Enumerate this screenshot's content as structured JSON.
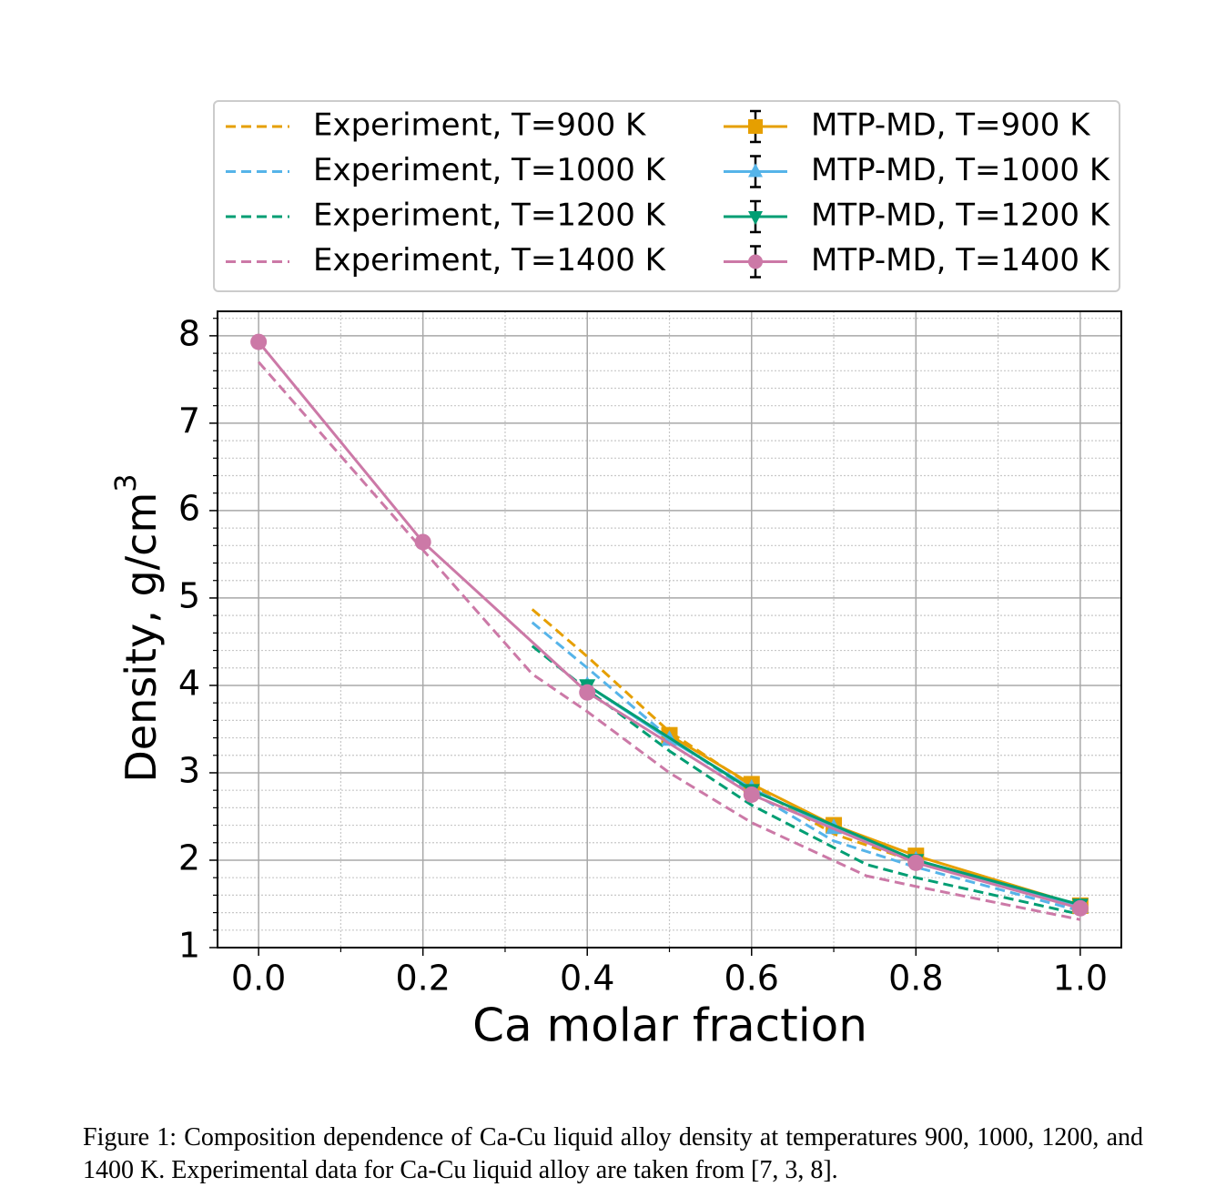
{
  "chart_data": {
    "type": "line",
    "xlabel": "Ca molar fraction",
    "ylabel": "Density, g/cm",
    "ylabel_superscript": "3",
    "xlim": [
      -0.05,
      1.05
    ],
    "ylim": [
      1,
      8.28
    ],
    "xticks": [
      {
        "value": 0,
        "label": "0.0"
      },
      0.2,
      0.4,
      0.6,
      0.8,
      {
        "value": 1,
        "label": "1.0"
      }
    ],
    "yticks": [
      1,
      2,
      3,
      4,
      5,
      6,
      7,
      8
    ],
    "xminorticks": [
      0.1,
      0.3,
      0.5,
      0.7,
      0.9
    ],
    "yminorticks": [
      1.2,
      1.4,
      1.6,
      1.8,
      2.2,
      2.4,
      2.6,
      2.8,
      3.2,
      3.4,
      3.6,
      3.8,
      4.2,
      4.4,
      4.6,
      4.8,
      5.2,
      5.4,
      5.6,
      5.8,
      6.2,
      6.4,
      6.6,
      6.8,
      7.2,
      7.4,
      7.6,
      7.8,
      8.2
    ],
    "grid": true,
    "minor_grid": true,
    "legend_loc": "above",
    "legend_columns": 2,
    "series": [
      {
        "name": "Experiment, T=900 K",
        "color": "#E69F00",
        "linestyle": "dashed",
        "x": [
          0.333,
          0.4,
          0.5,
          0.6,
          0.7,
          0.8
        ],
        "values": [
          4.87,
          4.33,
          3.47,
          2.85,
          2.3,
          1.98
        ]
      },
      {
        "name": "Experiment, T=1000 K",
        "color": "#56B4E9",
        "linestyle": "dashed",
        "x": [
          0.333,
          0.4,
          0.5,
          0.6,
          0.7,
          0.8,
          1.0
        ],
        "values": [
          4.72,
          4.2,
          3.4,
          2.78,
          2.22,
          1.92,
          1.42
        ]
      },
      {
        "name": "Experiment, T=1200 K",
        "color": "#009E73",
        "linestyle": "dashed",
        "x": [
          0.333,
          0.4,
          0.5,
          0.6,
          0.74,
          0.8,
          1.0
        ],
        "values": [
          4.45,
          3.95,
          3.25,
          2.63,
          1.95,
          1.8,
          1.38
        ]
      },
      {
        "name": "Experiment, T=1400 K",
        "color": "#CC79A7",
        "linestyle": "dashed",
        "x": [
          0,
          0.2,
          0.333,
          0.4,
          0.5,
          0.6,
          0.74,
          0.8,
          1.0
        ],
        "values": [
          7.7,
          5.55,
          4.13,
          3.7,
          3.0,
          2.43,
          1.82,
          1.7,
          1.32
        ]
      },
      {
        "name": "MTP-MD, T=900 K",
        "color": "#E69F00",
        "linestyle": "solid",
        "marker": "square",
        "x": [
          0.5,
          0.6,
          0.7,
          0.8,
          1.0
        ],
        "values": [
          3.43,
          2.87,
          2.4,
          2.05,
          1.48
        ]
      },
      {
        "name": "MTP-MD, T=1000 K",
        "color": "#56B4E9",
        "linestyle": "solid",
        "marker": "triangle-up",
        "x": [
          0.4,
          0.5,
          0.6,
          0.7,
          0.8,
          1.0
        ],
        "values": [
          4.0,
          3.38,
          2.82,
          2.37,
          2.0,
          1.47
        ]
      },
      {
        "name": "MTP-MD, T=1200 K",
        "color": "#009E73",
        "linestyle": "solid",
        "marker": "triangle-down",
        "x": [
          0.4,
          0.6,
          0.8,
          1.0
        ],
        "values": [
          4.0,
          2.8,
          2.0,
          1.49
        ]
      },
      {
        "name": "MTP-MD, T=1400 K",
        "color": "#CC79A7",
        "linestyle": "solid",
        "marker": "circle",
        "x": [
          0,
          0.2,
          0.4,
          0.6,
          0.8,
          1.0
        ],
        "values": [
          7.93,
          5.64,
          3.92,
          2.75,
          1.97,
          1.45
        ]
      }
    ]
  },
  "caption": "Figure 1: Composition dependence of Ca-Cu liquid alloy density at temperatures 900, 1000, 1200, and 1400 K. Experimental data for Ca-Cu liquid alloy are taken from [7, 3, 8]."
}
